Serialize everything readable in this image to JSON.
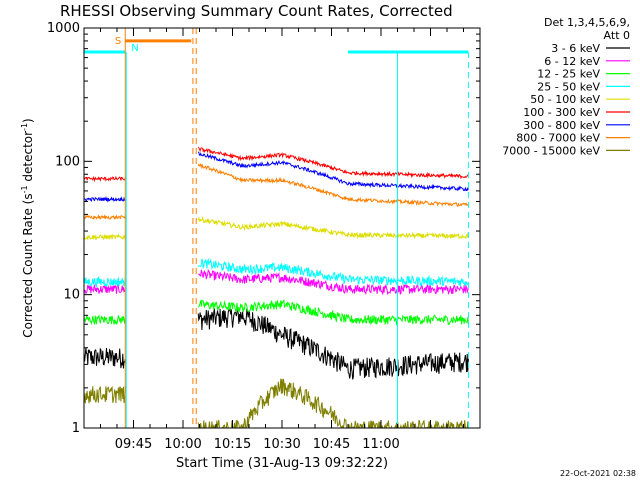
{
  "chart_data": {
    "type": "line",
    "title": "RHESSI Observing Summary Count Rates, Corrected",
    "xlabel": "Start Time (31-Aug-13 09:32:22)",
    "ylabel_main": "Corrected Count Rate (s",
    "ylabel_sup1": "-1",
    "ylabel_mid": " detector",
    "ylabel_sup2": "-1",
    "ylabel_end": ")",
    "yscale": "log",
    "ylim": [
      1,
      1000
    ],
    "xlim_min": [
      570,
      690
    ],
    "yticks": [
      {
        "v": 1,
        "label": "1"
      },
      {
        "v": 10,
        "label": "10"
      },
      {
        "v": 100,
        "label": "100"
      },
      {
        "v": 1000,
        "label": "1000"
      }
    ],
    "xticks": [
      {
        "t": 585,
        "label": "09:45"
      },
      {
        "t": 600,
        "label": "10:00"
      },
      {
        "t": 615,
        "label": "10:15"
      },
      {
        "t": 630,
        "label": "10:30"
      },
      {
        "t": 645,
        "label": "10:45"
      },
      {
        "t": 660,
        "label": "11:00"
      }
    ],
    "legend_header": [
      "Det 1,3,4,5,6,9,",
      "Att 0"
    ],
    "legend_position": "top-right, outside plot",
    "series": [
      {
        "name": "3 - 6 keV",
        "color": "#000000",
        "pre": 3.4,
        "post": [
          6.5,
          7.0,
          5.0,
          2.8,
          3.2
        ],
        "noise": 0.18
      },
      {
        "name": "6 - 12 keV",
        "color": "#ff00ff",
        "pre": 11.0,
        "post": [
          14.5,
          13.0,
          13.5,
          11.0,
          11.0
        ],
        "noise": 0.08
      },
      {
        "name": "12 - 25 keV",
        "color": "#00ff00",
        "pre": 6.5,
        "post": [
          8.5,
          8.0,
          8.5,
          6.5,
          6.5
        ],
        "noise": 0.08
      },
      {
        "name": "25 - 50 keV",
        "color": "#00ffff",
        "pre": 12.5,
        "post": [
          17.5,
          15.5,
          16.0,
          13.0,
          12.5
        ],
        "noise": 0.08
      },
      {
        "name": "50 - 100 keV",
        "color": "#dddd00",
        "pre": 27.0,
        "post": [
          37.0,
          32.0,
          34.0,
          28.0,
          27.5
        ],
        "noise": 0.04
      },
      {
        "name": "100 - 300 keV",
        "color": "#ff0000",
        "pre": 74.0,
        "post": [
          125.0,
          105.0,
          112.0,
          82.0,
          77.0
        ],
        "noise": 0.03
      },
      {
        "name": "300 - 800 keV",
        "color": "#0000ff",
        "pre": 52.0,
        "post": [
          115.0,
          92.0,
          98.0,
          68.0,
          62.0
        ],
        "noise": 0.03
      },
      {
        "name": "800 - 7000 keV",
        "color": "#ff8000",
        "pre": 38.0,
        "post": [
          95.0,
          72.0,
          72.0,
          52.0,
          47.0
        ],
        "noise": 0.03
      },
      {
        "name": "7000 - 15000 keV",
        "color": "#808000",
        "pre": 1.8,
        "post": [
          1.0,
          1.0,
          2.1,
          1.0,
          1.0
        ],
        "noise": 0.15
      }
    ],
    "segments": {
      "saa_bar": {
        "t0": 582.5,
        "t1": 602.5,
        "value": 800,
        "label": "S",
        "color": "#ff8000"
      },
      "night_bars": [
        {
          "t0": 570,
          "t1": 582.5,
          "value": 660
        },
        {
          "t0": 650,
          "t1": 686.5,
          "value": 660
        }
      ],
      "night_label": "N",
      "gap_start": 583,
      "gap_end": 604,
      "orange_lines": [
        582.5,
        603,
        604
      ],
      "cyan_lines": [
        582.8,
        665,
        686.5
      ],
      "data_end": 686.5
    }
  },
  "footer_date": "22-Oct-2021 02:38"
}
